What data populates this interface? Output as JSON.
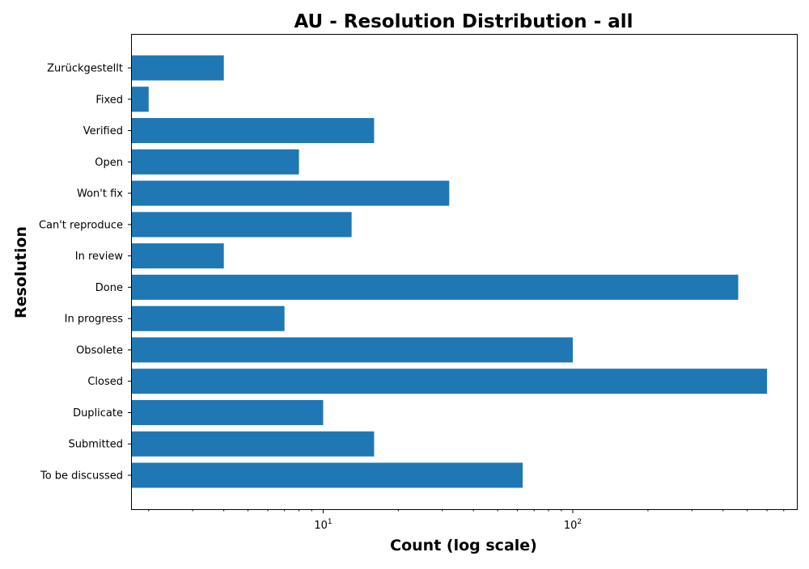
{
  "chart_data": {
    "type": "bar",
    "orientation": "horizontal",
    "title": "AU - Resolution Distribution - all",
    "xlabel": "Count (log scale)",
    "ylabel": "Resolution",
    "xscale": "log",
    "xlim": [
      1.7,
      790
    ],
    "x_major_ticks": [
      {
        "base": "10",
        "exp": "1",
        "value": 10
      },
      {
        "base": "10",
        "exp": "2",
        "value": 100
      }
    ],
    "grid": false,
    "bar_color": "#1f77b4",
    "categories": [
      "To be discussed",
      "Submitted",
      "Duplicate",
      "Closed",
      "Obsolete",
      "In progress",
      "Done",
      "In review",
      "Can't reproduce",
      "Won't fix",
      "Open",
      "Verified",
      "Fixed",
      "Zurückgestellt"
    ],
    "values": [
      63,
      16,
      10,
      600,
      100,
      7,
      460,
      4,
      13,
      32,
      8,
      16,
      2,
      4
    ]
  }
}
